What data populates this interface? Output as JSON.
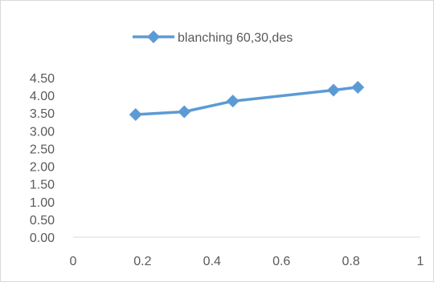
{
  "chart_data": {
    "type": "line",
    "title": "",
    "xlabel": "",
    "ylabel": "",
    "xlim": [
      0,
      1
    ],
    "ylim": [
      0,
      4.5
    ],
    "x_ticks": [
      "0",
      "0.2",
      "0.4",
      "0.6",
      "0.8",
      "1"
    ],
    "y_ticks": [
      "0.00",
      "0.50",
      "1.00",
      "1.50",
      "2.00",
      "2.50",
      "3.00",
      "3.50",
      "4.00",
      "4.50"
    ],
    "grid": false,
    "legend_position": "top",
    "series": [
      {
        "name": "blanching 60,30,des",
        "color": "#5B9BD5",
        "marker": "diamond",
        "x": [
          0.18,
          0.32,
          0.46,
          0.75,
          0.82
        ],
        "y": [
          3.46,
          3.54,
          3.84,
          4.15,
          4.23
        ]
      }
    ]
  }
}
